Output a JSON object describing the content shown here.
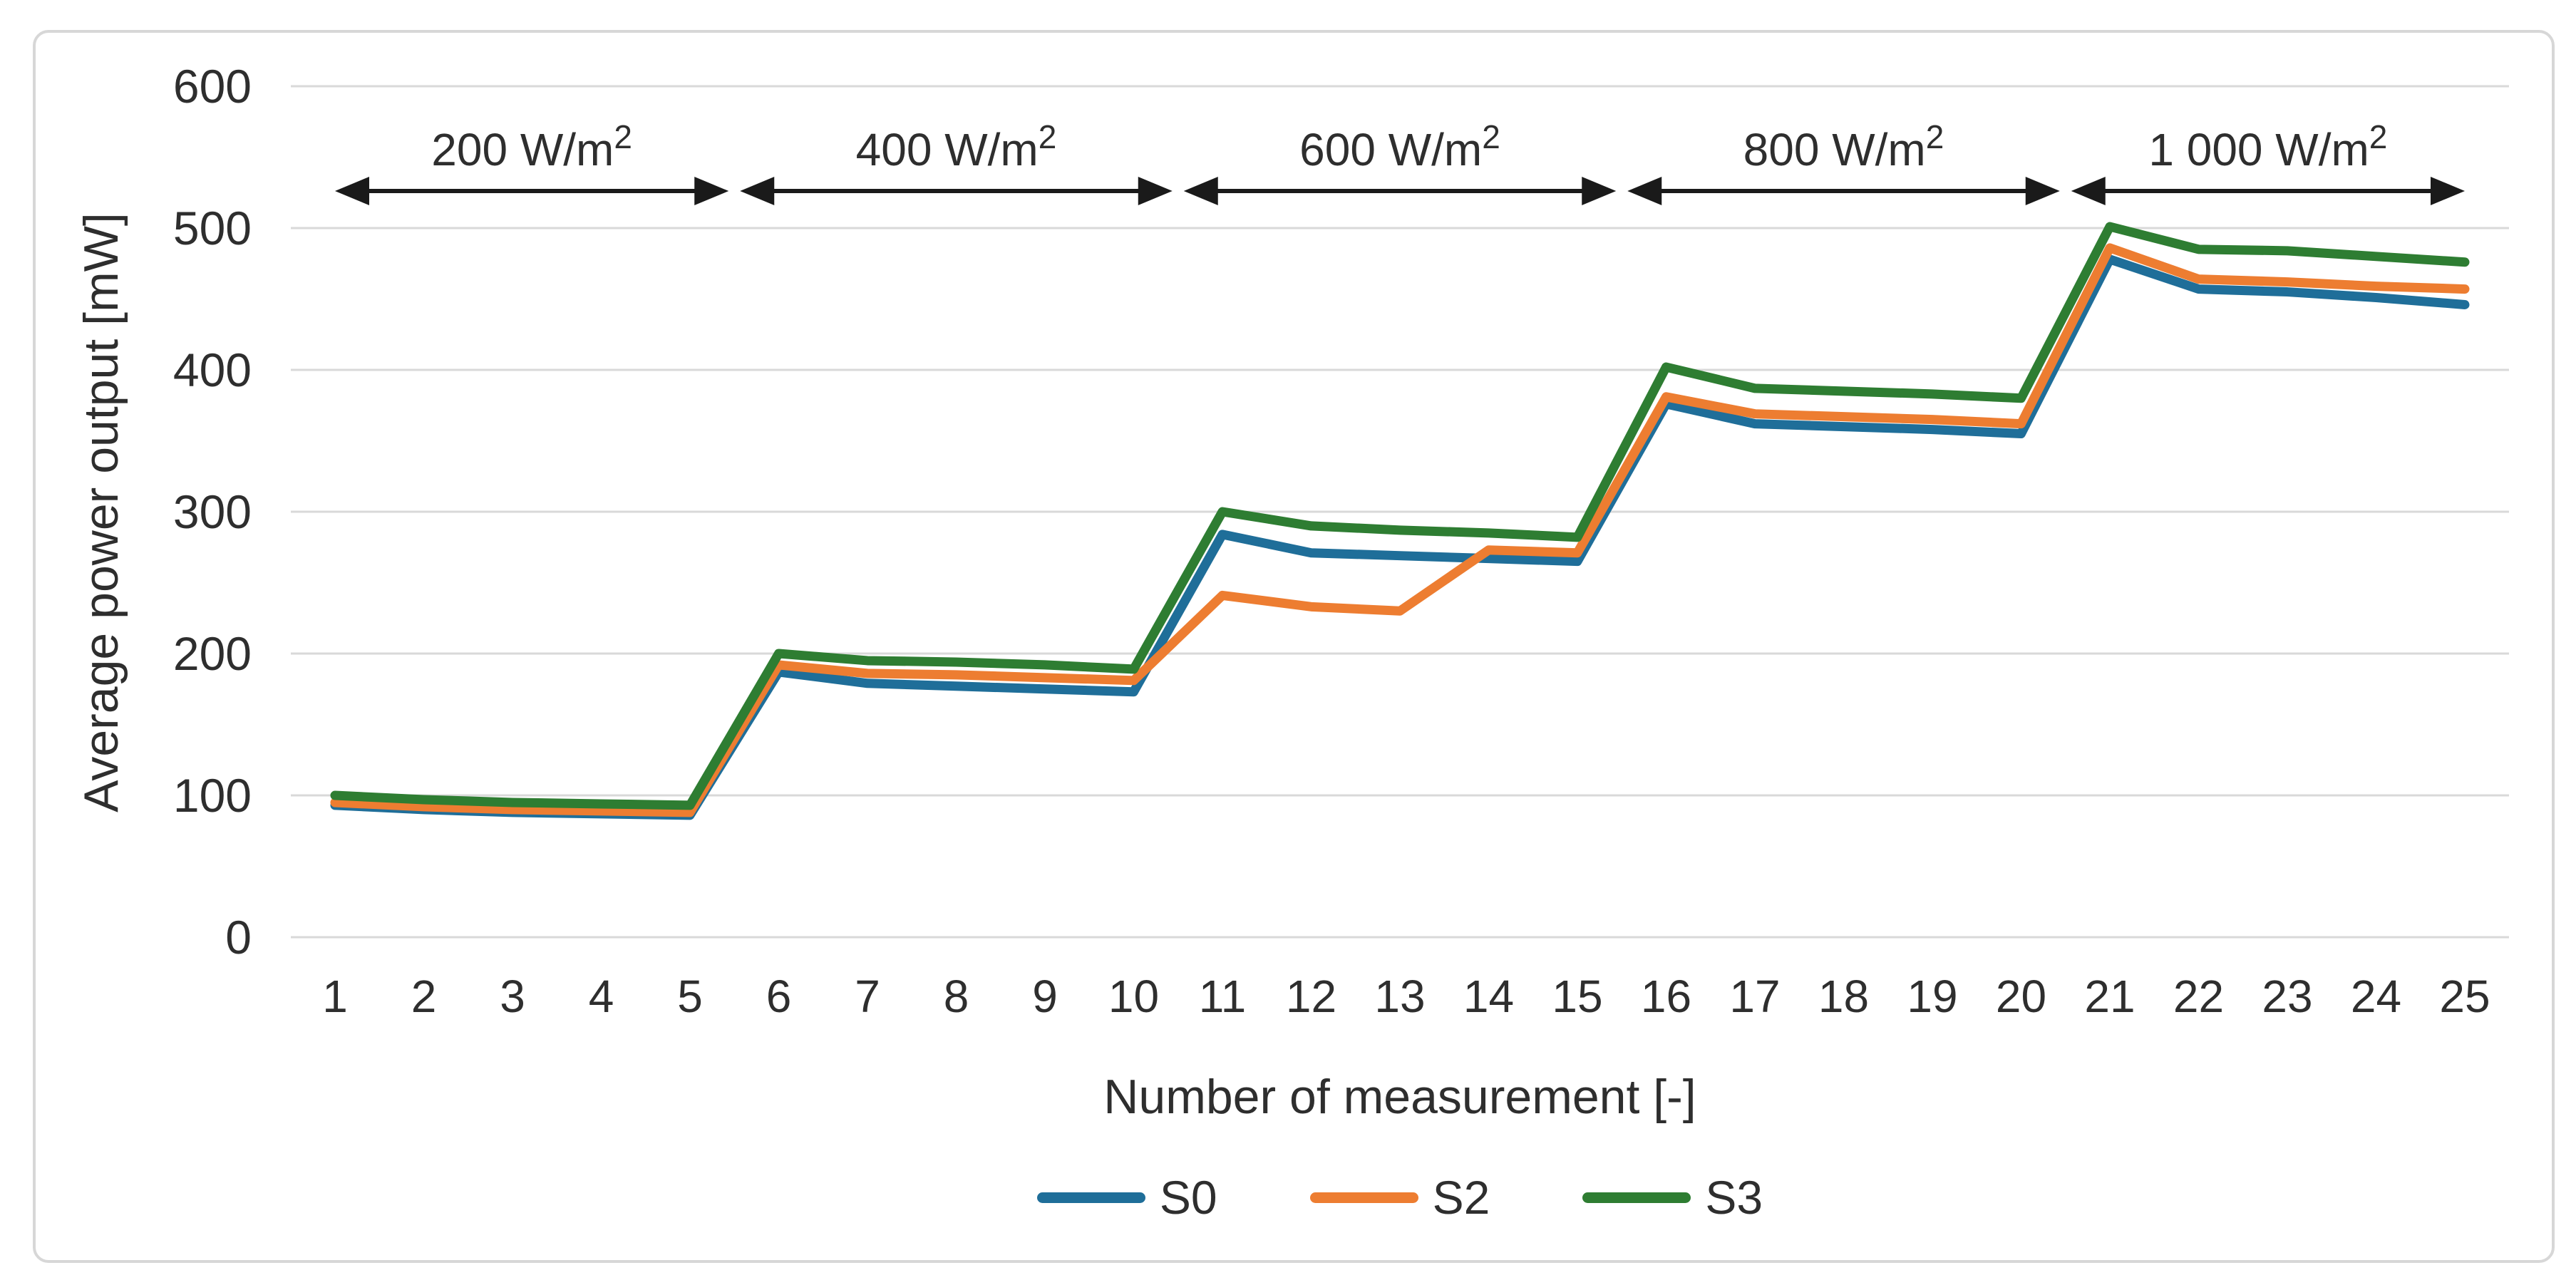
{
  "chart_data": {
    "type": "line",
    "title": "",
    "xlabel": "Number of measurement [-]",
    "ylabel": "Average power output [mW]",
    "x": [
      1,
      2,
      3,
      4,
      5,
      6,
      7,
      8,
      9,
      10,
      11,
      12,
      13,
      14,
      15,
      16,
      17,
      18,
      19,
      20,
      21,
      22,
      23,
      24,
      25
    ],
    "x_tick_labels": [
      "1",
      "2",
      "3",
      "4",
      "5",
      "6",
      "7",
      "8",
      "9",
      "10",
      "11",
      "12",
      "13",
      "14",
      "15",
      "16",
      "17",
      "18",
      "19",
      "20",
      "21",
      "22",
      "23",
      "24",
      "25"
    ],
    "y_ticks": [
      0,
      100,
      200,
      300,
      400,
      500,
      600
    ],
    "y_tick_labels": [
      "0",
      "100",
      "200",
      "300",
      "400",
      "500",
      "600"
    ],
    "ylim": [
      0,
      600
    ],
    "grid": true,
    "legend_position": "bottom",
    "series": [
      {
        "name": "S0",
        "color": "#1F6E99",
        "values": [
          93,
          90,
          88,
          87,
          86,
          187,
          179,
          177,
          175,
          173,
          284,
          271,
          269,
          267,
          265,
          376,
          362,
          360,
          358,
          355,
          478,
          457,
          455,
          451,
          446
        ]
      },
      {
        "name": "S2",
        "color": "#ED7D31",
        "values": [
          95,
          92,
          90,
          89,
          88,
          192,
          186,
          185,
          183,
          181,
          241,
          233,
          230,
          273,
          271,
          381,
          369,
          367,
          365,
          362,
          486,
          464,
          462,
          459,
          457
        ]
      },
      {
        "name": "S3",
        "color": "#2E7D32",
        "values": [
          100,
          97,
          95,
          94,
          93,
          200,
          195,
          194,
          192,
          189,
          300,
          290,
          287,
          285,
          282,
          402,
          387,
          385,
          383,
          380,
          501,
          485,
          484,
          480,
          476
        ]
      }
    ],
    "annotations": [
      {
        "label": "200 W/m²",
        "start": 1,
        "end": 5.5
      },
      {
        "label": "400 W/m²",
        "start": 5.5,
        "end": 10.5
      },
      {
        "label": "600 W/m²",
        "start": 10.5,
        "end": 15.5
      },
      {
        "label": "800 W/m²",
        "start": 15.5,
        "end": 20.5
      },
      {
        "label": "1 000 W/m²",
        "start": 20.5,
        "end": 25
      }
    ]
  },
  "style": {
    "grid_color": "#D9D9D9",
    "text_color": "#2E2E2E",
    "arrow_color": "#1A1A1A",
    "frame_color": "#D7D7D7",
    "background": "#FFFFFF"
  }
}
